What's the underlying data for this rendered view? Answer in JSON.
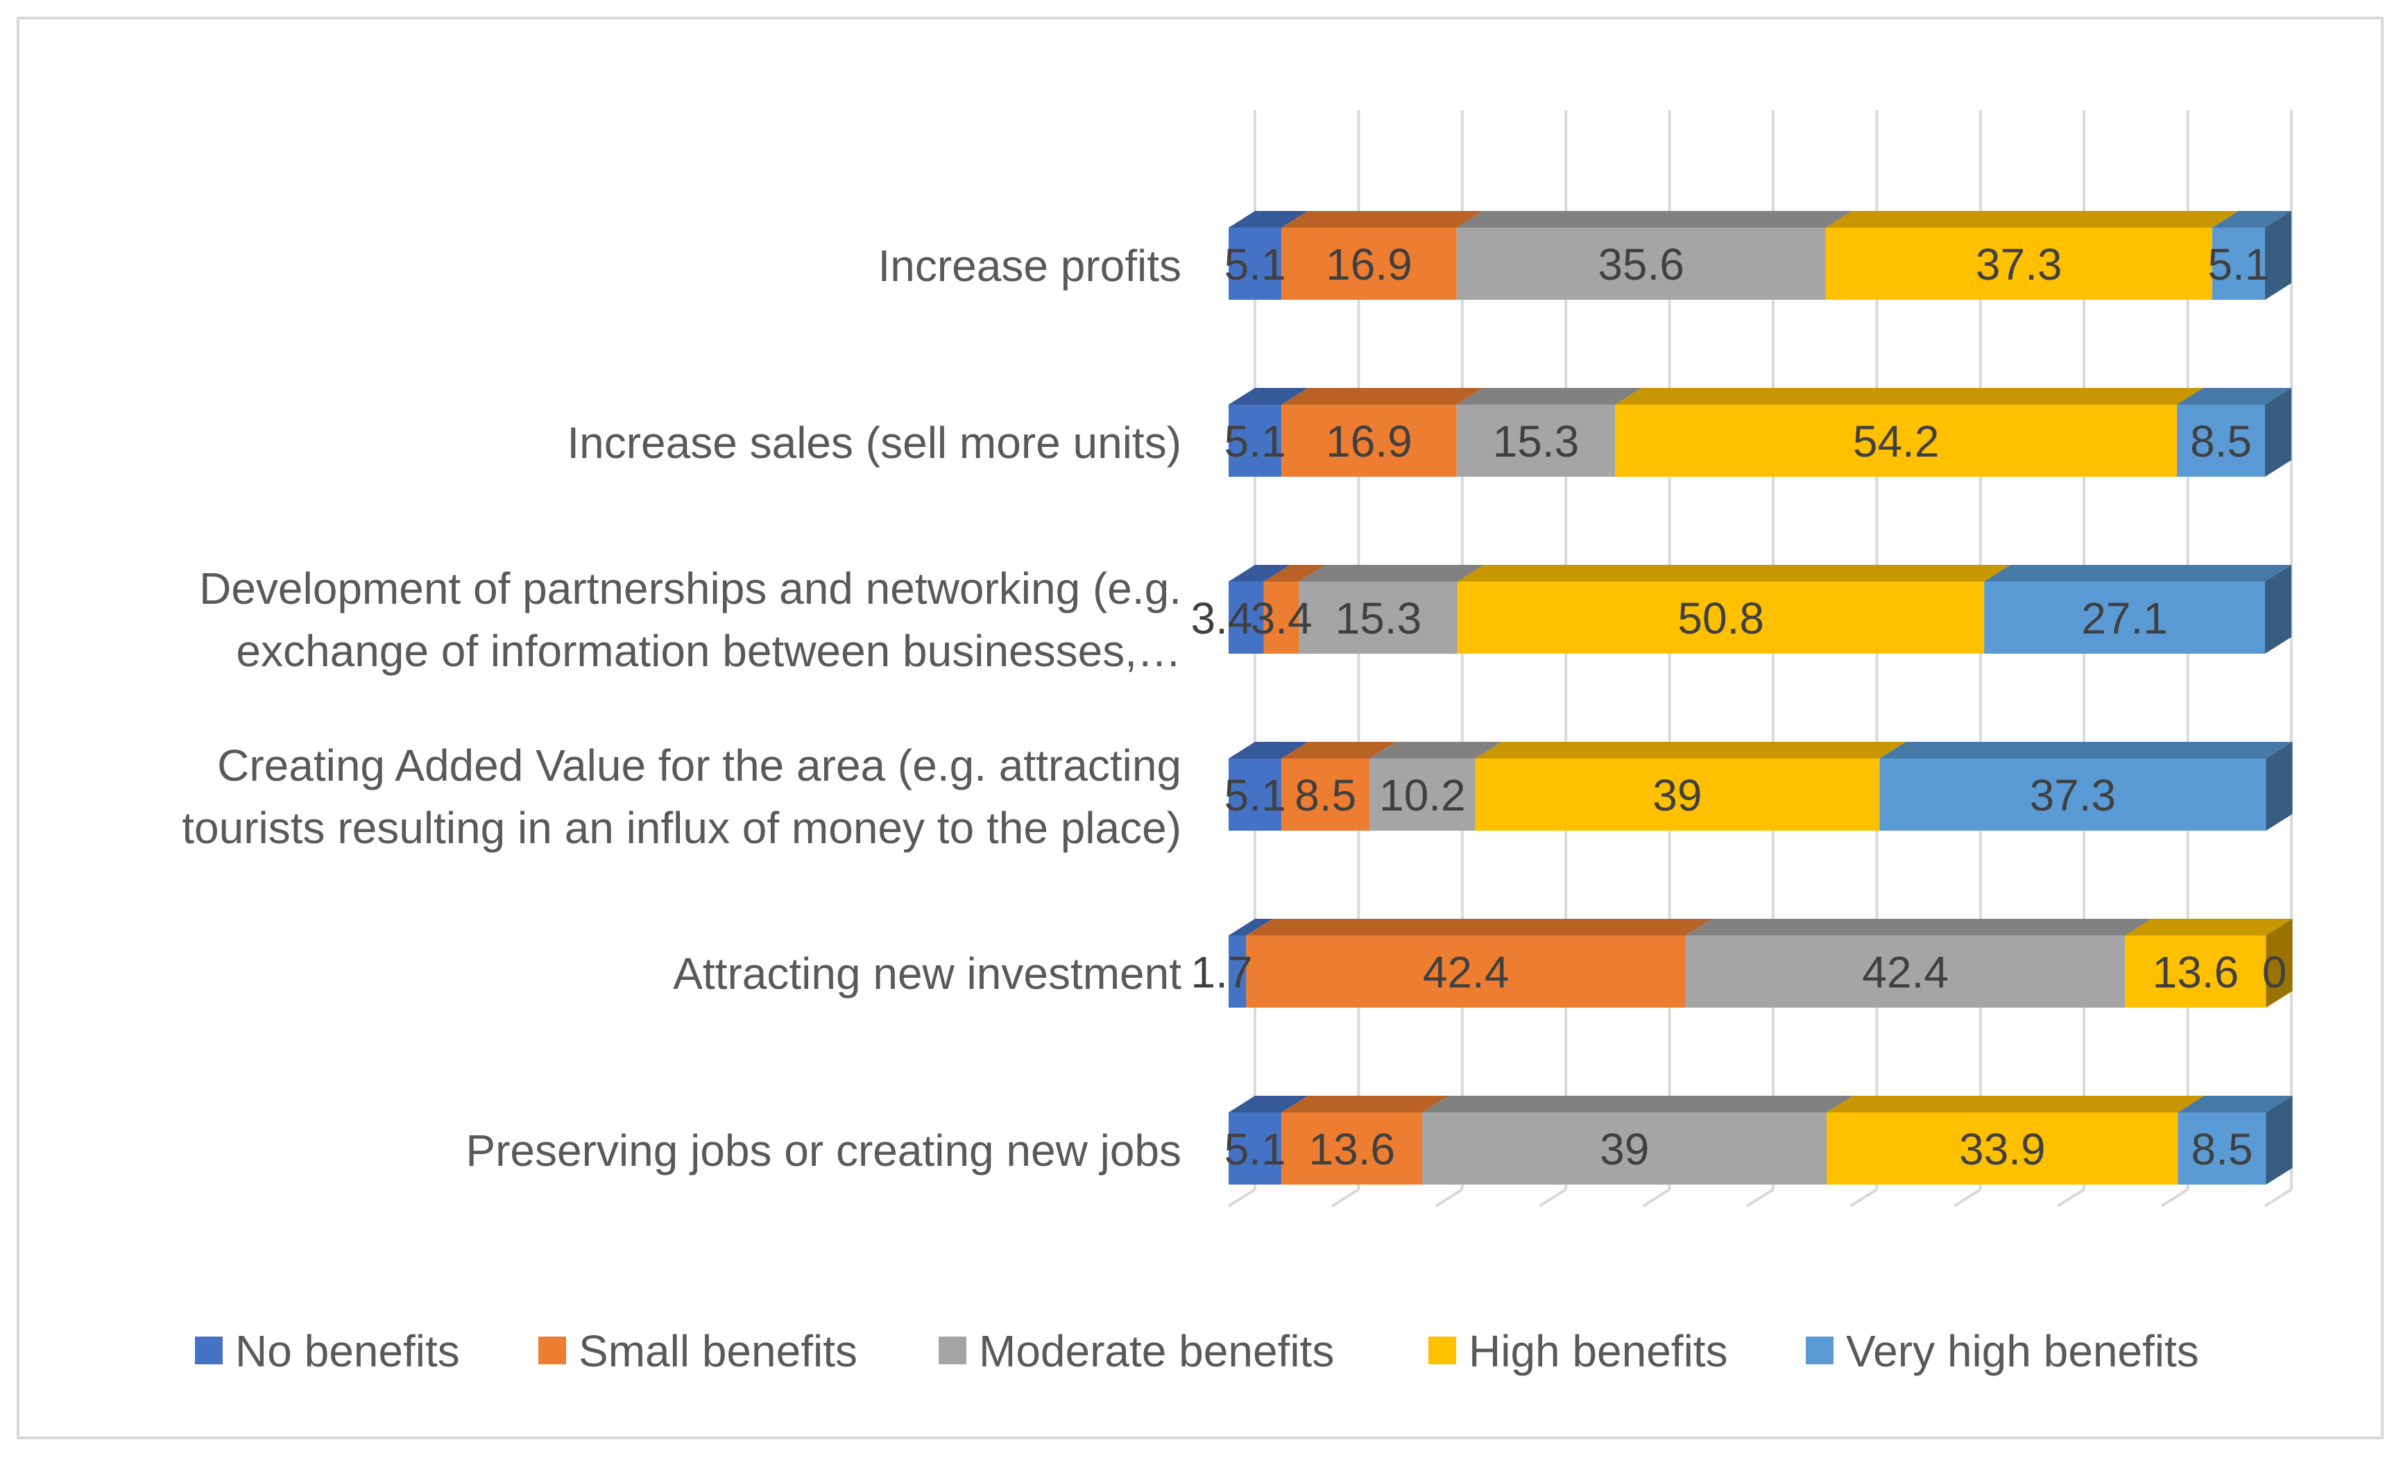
{
  "chart_data": {
    "type": "bar",
    "orientation": "horizontal",
    "stacked": true,
    "percent_stacked": true,
    "style": "3d",
    "title": "",
    "xlabel": "",
    "ylabel": "",
    "xlim": [
      0,
      100
    ],
    "grid": true,
    "legend_position": "bottom",
    "categories": [
      "Increase profits",
      "Increase sales (sell more units)",
      "Development of partnerships and networking (e.g. exchange of information between businesses,…",
      "Creating Added Value for the area (e.g. attracting tourists resulting in an influx of money to the place)",
      "Attracting new investment",
      "Preserving jobs or creating new jobs"
    ],
    "category_lines": [
      [
        "Increase profits"
      ],
      [
        "Increase sales (sell more units)"
      ],
      [
        "Development of partnerships and networking (e.g.",
        "exchange of information between businesses,…"
      ],
      [
        "Creating Added Value for the area (e.g. attracting",
        "tourists resulting in an influx of money to the place)"
      ],
      [
        "Attracting new investment"
      ],
      [
        "Preserving jobs or creating new jobs"
      ]
    ],
    "series": [
      {
        "name": "No benefits",
        "color": "#4472C4",
        "values": [
          5.1,
          5.1,
          3.4,
          5.1,
          1.7,
          5.1
        ]
      },
      {
        "name": "Small benefits",
        "color": "#ED7D31",
        "values": [
          16.9,
          16.9,
          3.4,
          8.5,
          42.4,
          13.6
        ]
      },
      {
        "name": "Moderate benefits",
        "color": "#A5A5A5",
        "values": [
          35.6,
          15.3,
          15.3,
          10.2,
          42.4,
          39
        ]
      },
      {
        "name": "High benefits",
        "color": "#FFC000",
        "values": [
          37.3,
          54.2,
          50.8,
          39,
          13.6,
          33.9
        ]
      },
      {
        "name": "Very high benefits",
        "color": "#5B9BD5",
        "values": [
          5.1,
          8.5,
          27.1,
          37.3,
          0,
          8.5
        ]
      }
    ]
  }
}
